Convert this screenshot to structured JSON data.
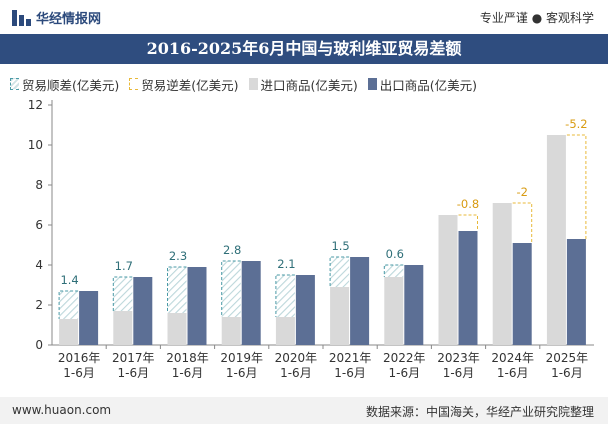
{
  "header": {
    "site_name": "华经情报网",
    "tagline": "专业严谨 ● 客观科学"
  },
  "legend": {
    "surplus": "贸易顺差(亿美元)",
    "deficit": "贸易逆差(亿美元)",
    "import": "进口商品(亿美元)",
    "export": "出口商品(亿美元)"
  },
  "footer": {
    "website": "www.huaon.com",
    "source": "数据来源：中国海关，华经产业研究院整理"
  },
  "colors": {
    "title_bg": "#2f4d7f",
    "import": "#d9d9d9",
    "export": "#5c6f95",
    "surplus": "#4a9aa6",
    "deficit": "#e8b93a"
  },
  "chart_data": {
    "type": "bar",
    "title": "2016-2025年6月中国与玻利维亚贸易差额",
    "categories": [
      "2016年\n1-6月",
      "2017年\n1-6月",
      "2018年\n1-6月",
      "2019年\n1-6月",
      "2020年\n1-6月",
      "2021年\n1-6月",
      "2022年\n1-6月",
      "2023年\n1-6月",
      "2024年\n1-6月",
      "2025年\n1-6月"
    ],
    "series": [
      {
        "name": "进口商品(亿美元)",
        "values": [
          1.3,
          1.7,
          1.6,
          1.4,
          1.4,
          2.9,
          3.4,
          6.5,
          7.1,
          10.5
        ]
      },
      {
        "name": "出口商品(亿美元)",
        "values": [
          2.7,
          3.4,
          3.9,
          4.2,
          3.5,
          4.4,
          4.0,
          5.7,
          5.1,
          5.3
        ]
      }
    ],
    "balance": [
      1.4,
      1.7,
      2.3,
      2.8,
      2.1,
      1.5,
      0.6,
      -0.8,
      -2,
      -5.2
    ],
    "balance_labels": [
      "1.4",
      "1.7",
      "2.3",
      "2.8",
      "2.1",
      "1.5",
      "0.6",
      "-0.8",
      "-2",
      "-5.2"
    ],
    "ylim": [
      0,
      12
    ],
    "yticks": [
      0,
      2,
      4,
      6,
      8,
      10,
      12
    ],
    "grid": false,
    "legend_position": "top-left"
  }
}
